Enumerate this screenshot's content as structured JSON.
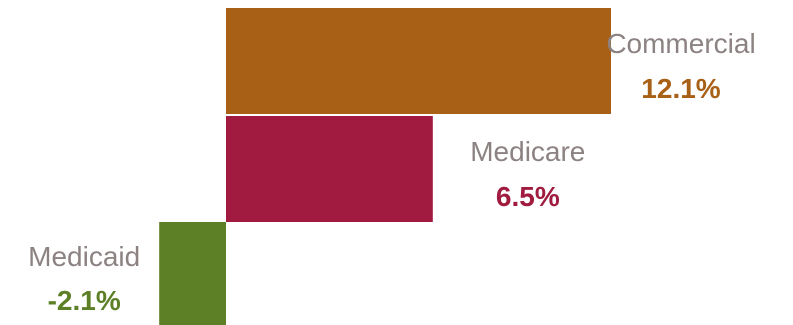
{
  "chart_data": {
    "type": "bar",
    "orientation": "horizontal",
    "categories": [
      "Commercial",
      "Medicare",
      "Medicaid"
    ],
    "values": [
      12.1,
      6.5,
      -2.1
    ],
    "value_labels": [
      "12.1%",
      "6.5%",
      "-2.1%"
    ],
    "colors": [
      "#a86016",
      "#a01b3f",
      "#5d8026"
    ],
    "xlim": [
      -2.1,
      12.1
    ],
    "grid": false,
    "legend": "none",
    "unit": "%"
  }
}
